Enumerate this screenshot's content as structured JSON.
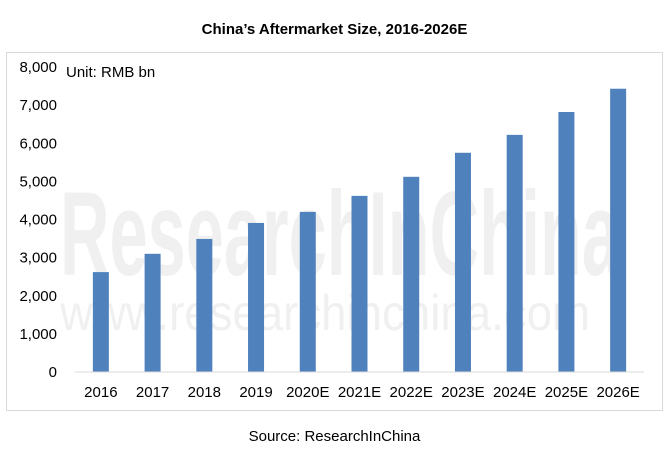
{
  "chart_data": {
    "type": "bar",
    "title": "China’s Aftermarket Size, 2016-2026E",
    "unit_label": "Unit: RMB bn",
    "source": "Source: ResearchInChina",
    "watermark": [
      "ResearchInChina",
      "www.researchinchina.com"
    ],
    "categories": [
      "2016",
      "2017",
      "2018",
      "2019",
      "2020E",
      "2021E",
      "2022E",
      "2023E",
      "2024E",
      "2025E",
      "2026E"
    ],
    "values": [
      2620,
      3100,
      3490,
      3910,
      4200,
      4620,
      5120,
      5750,
      6220,
      6820,
      7430
    ],
    "ylim": [
      0,
      8000
    ],
    "yticks": [
      0,
      1000,
      2000,
      3000,
      4000,
      5000,
      6000,
      7000,
      8000
    ],
    "ytick_labels": [
      "0",
      "1,000",
      "2,000",
      "3,000",
      "4,000",
      "5,000",
      "6,000",
      "7,000",
      "8,000"
    ],
    "xlabel": "",
    "ylabel": "",
    "grid": false,
    "bar_color": "#4f81bd"
  }
}
